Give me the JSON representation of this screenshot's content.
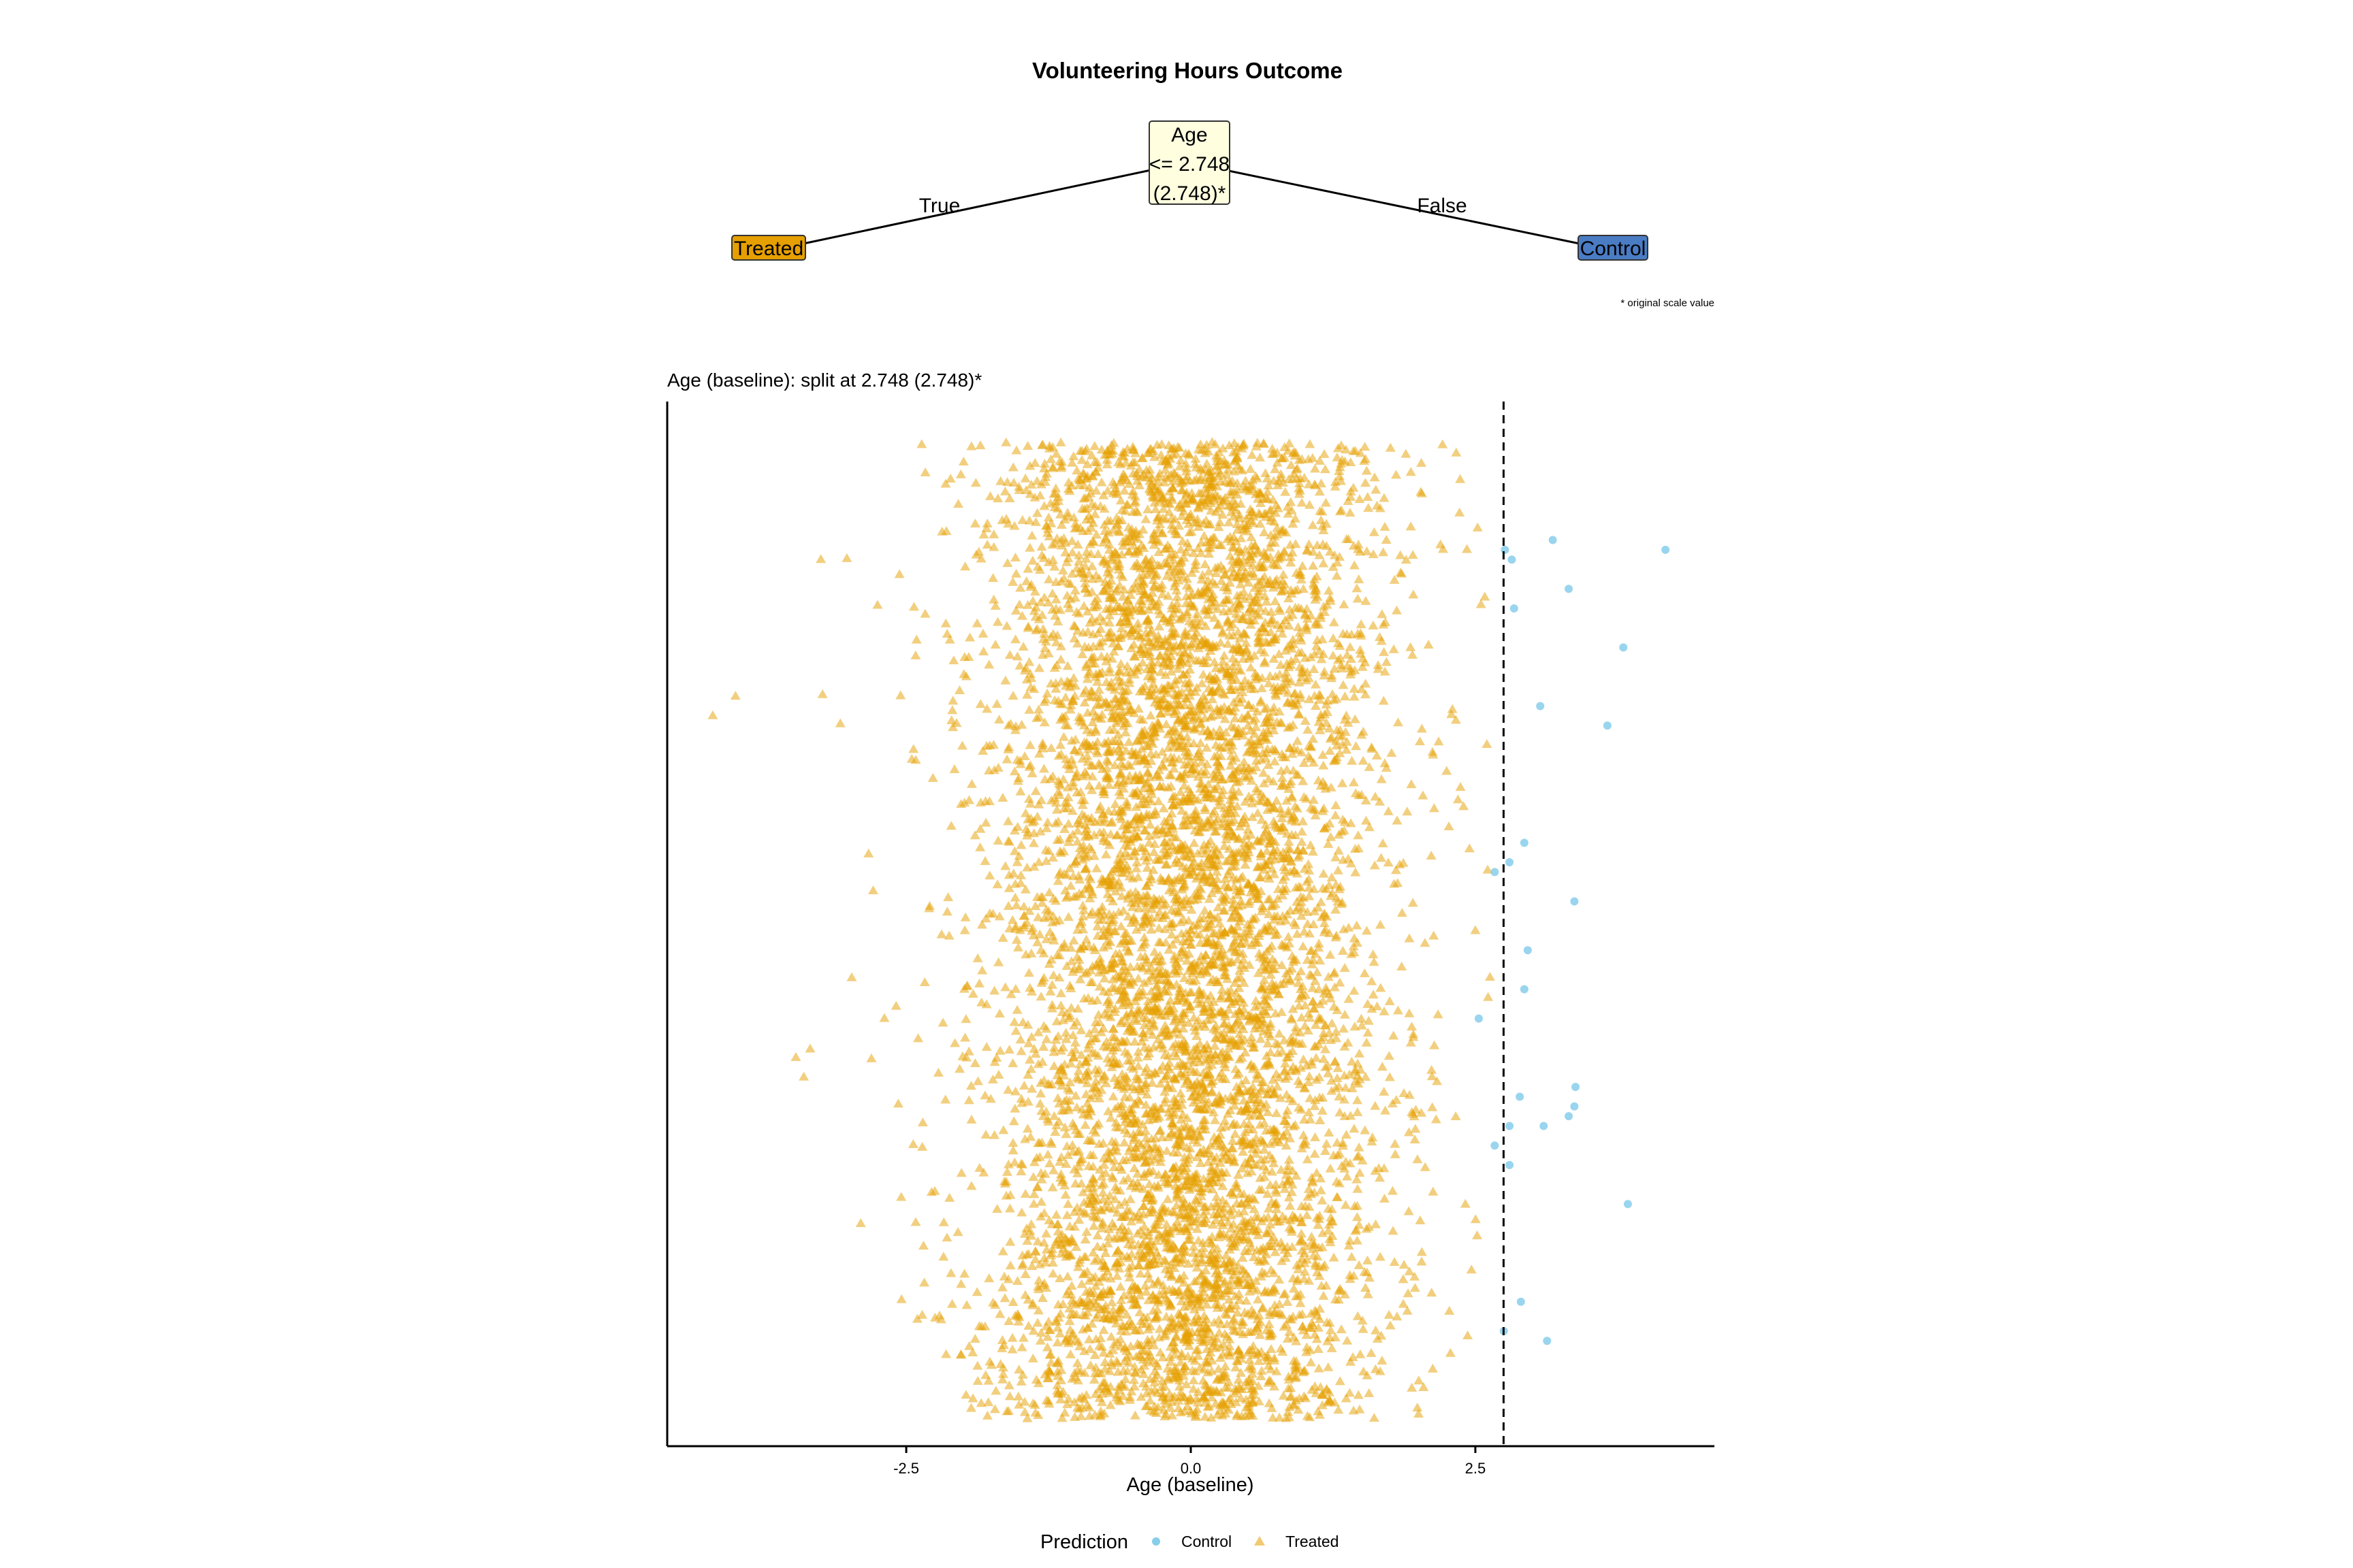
{
  "title": "Volunteering Hours Outcome",
  "tree": {
    "root": {
      "variable": "Age",
      "rule": "<= 2.748",
      "original": "(2.748)*",
      "fill": "#ffffe0"
    },
    "left_edge_label": "True",
    "right_edge_label": "False",
    "left_leaf": {
      "label": "Treated",
      "fill": "#e69f00"
    },
    "right_leaf": {
      "label": "Control",
      "fill": "#4a7cc4"
    },
    "footnote": "* original scale value"
  },
  "chart_data": {
    "type": "scatter",
    "subtitle": "Age (baseline): split at 2.748 (2.748)*",
    "xlabel": "Age (baseline)",
    "ylabel": "",
    "xlim": [
      -4.6,
      4.6
    ],
    "ylim": [
      0,
      1
    ],
    "x_ticks": [
      -2.5,
      0.0,
      2.5
    ],
    "x_tick_labels": [
      "-2.5",
      "0.0",
      "2.5"
    ],
    "split_value": 2.748,
    "y_axis": "jitter only (no scale shown)",
    "series": [
      {
        "name": "Control",
        "marker": "circle",
        "color": "#87ceeb",
        "points": [
          [
            2.76,
            0.89
          ],
          [
            2.82,
            0.88
          ],
          [
            3.18,
            0.9
          ],
          [
            4.17,
            0.89
          ],
          [
            3.32,
            0.85
          ],
          [
            2.84,
            0.83
          ],
          [
            3.8,
            0.79
          ],
          [
            3.07,
            0.73
          ],
          [
            3.66,
            0.71
          ],
          [
            2.93,
            0.59
          ],
          [
            2.8,
            0.57
          ],
          [
            2.67,
            0.56
          ],
          [
            3.37,
            0.53
          ],
          [
            2.96,
            0.48
          ],
          [
            2.93,
            0.44
          ],
          [
            2.53,
            0.41
          ],
          [
            2.89,
            0.33
          ],
          [
            3.38,
            0.34
          ],
          [
            3.37,
            0.32
          ],
          [
            2.8,
            0.3
          ],
          [
            3.1,
            0.3
          ],
          [
            3.32,
            0.31
          ],
          [
            2.67,
            0.28
          ],
          [
            2.8,
            0.26
          ],
          [
            3.84,
            0.22
          ],
          [
            2.9,
            0.12
          ],
          [
            3.13,
            0.08
          ],
          [
            2.75,
            0.09
          ]
        ]
      },
      {
        "name": "Treated",
        "marker": "triangle",
        "color": "#e69f00",
        "n_points": 7400,
        "distribution": {
          "mean": -0.05,
          "sd": 0.85,
          "x_min": -4.2,
          "x_max": 2.74
        },
        "sample_points": [
          [
            -4.2,
            0.72
          ],
          [
            -4.0,
            0.74
          ],
          [
            -3.47,
            0.37
          ],
          [
            -3.4,
            0.35
          ],
          [
            -3.25,
            0.88
          ],
          [
            -2.9,
            0.2
          ],
          [
            -1.5,
            0.5
          ],
          [
            -0.8,
            0.6
          ],
          [
            0.0,
            0.5
          ],
          [
            0.6,
            0.4
          ],
          [
            1.5,
            0.7
          ],
          [
            2.5,
            0.5
          ]
        ]
      }
    ],
    "legend": {
      "title": "Prediction",
      "position": "bottom",
      "entries": [
        "Control",
        "Treated"
      ]
    },
    "grid": false
  }
}
